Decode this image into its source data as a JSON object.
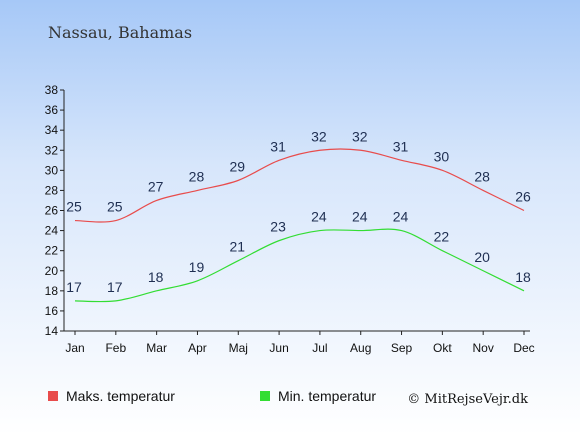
{
  "chart_data": {
    "type": "line",
    "title": "Nassau, Bahamas",
    "categories": [
      "Jan",
      "Feb",
      "Mar",
      "Apr",
      "Maj",
      "Jun",
      "Jul",
      "Aug",
      "Sep",
      "Okt",
      "Nov",
      "Dec"
    ],
    "series": [
      {
        "name": "Maks. temperatur",
        "color": "#e84c4c",
        "values": [
          25,
          25,
          27,
          28,
          29,
          31,
          32,
          32,
          31,
          30,
          28,
          26
        ]
      },
      {
        "name": "Min. temperatur",
        "color": "#33dd33",
        "values": [
          17,
          17,
          18,
          19,
          21,
          23,
          24,
          24,
          24,
          22,
          20,
          18
        ]
      }
    ],
    "ylim": [
      14,
      38
    ],
    "yticks": [
      14,
      16,
      18,
      20,
      22,
      24,
      26,
      28,
      30,
      32,
      34,
      36,
      38
    ],
    "grid": false,
    "legend_position": "bottom-left",
    "credit": "© MitRejseVejr.dk"
  }
}
